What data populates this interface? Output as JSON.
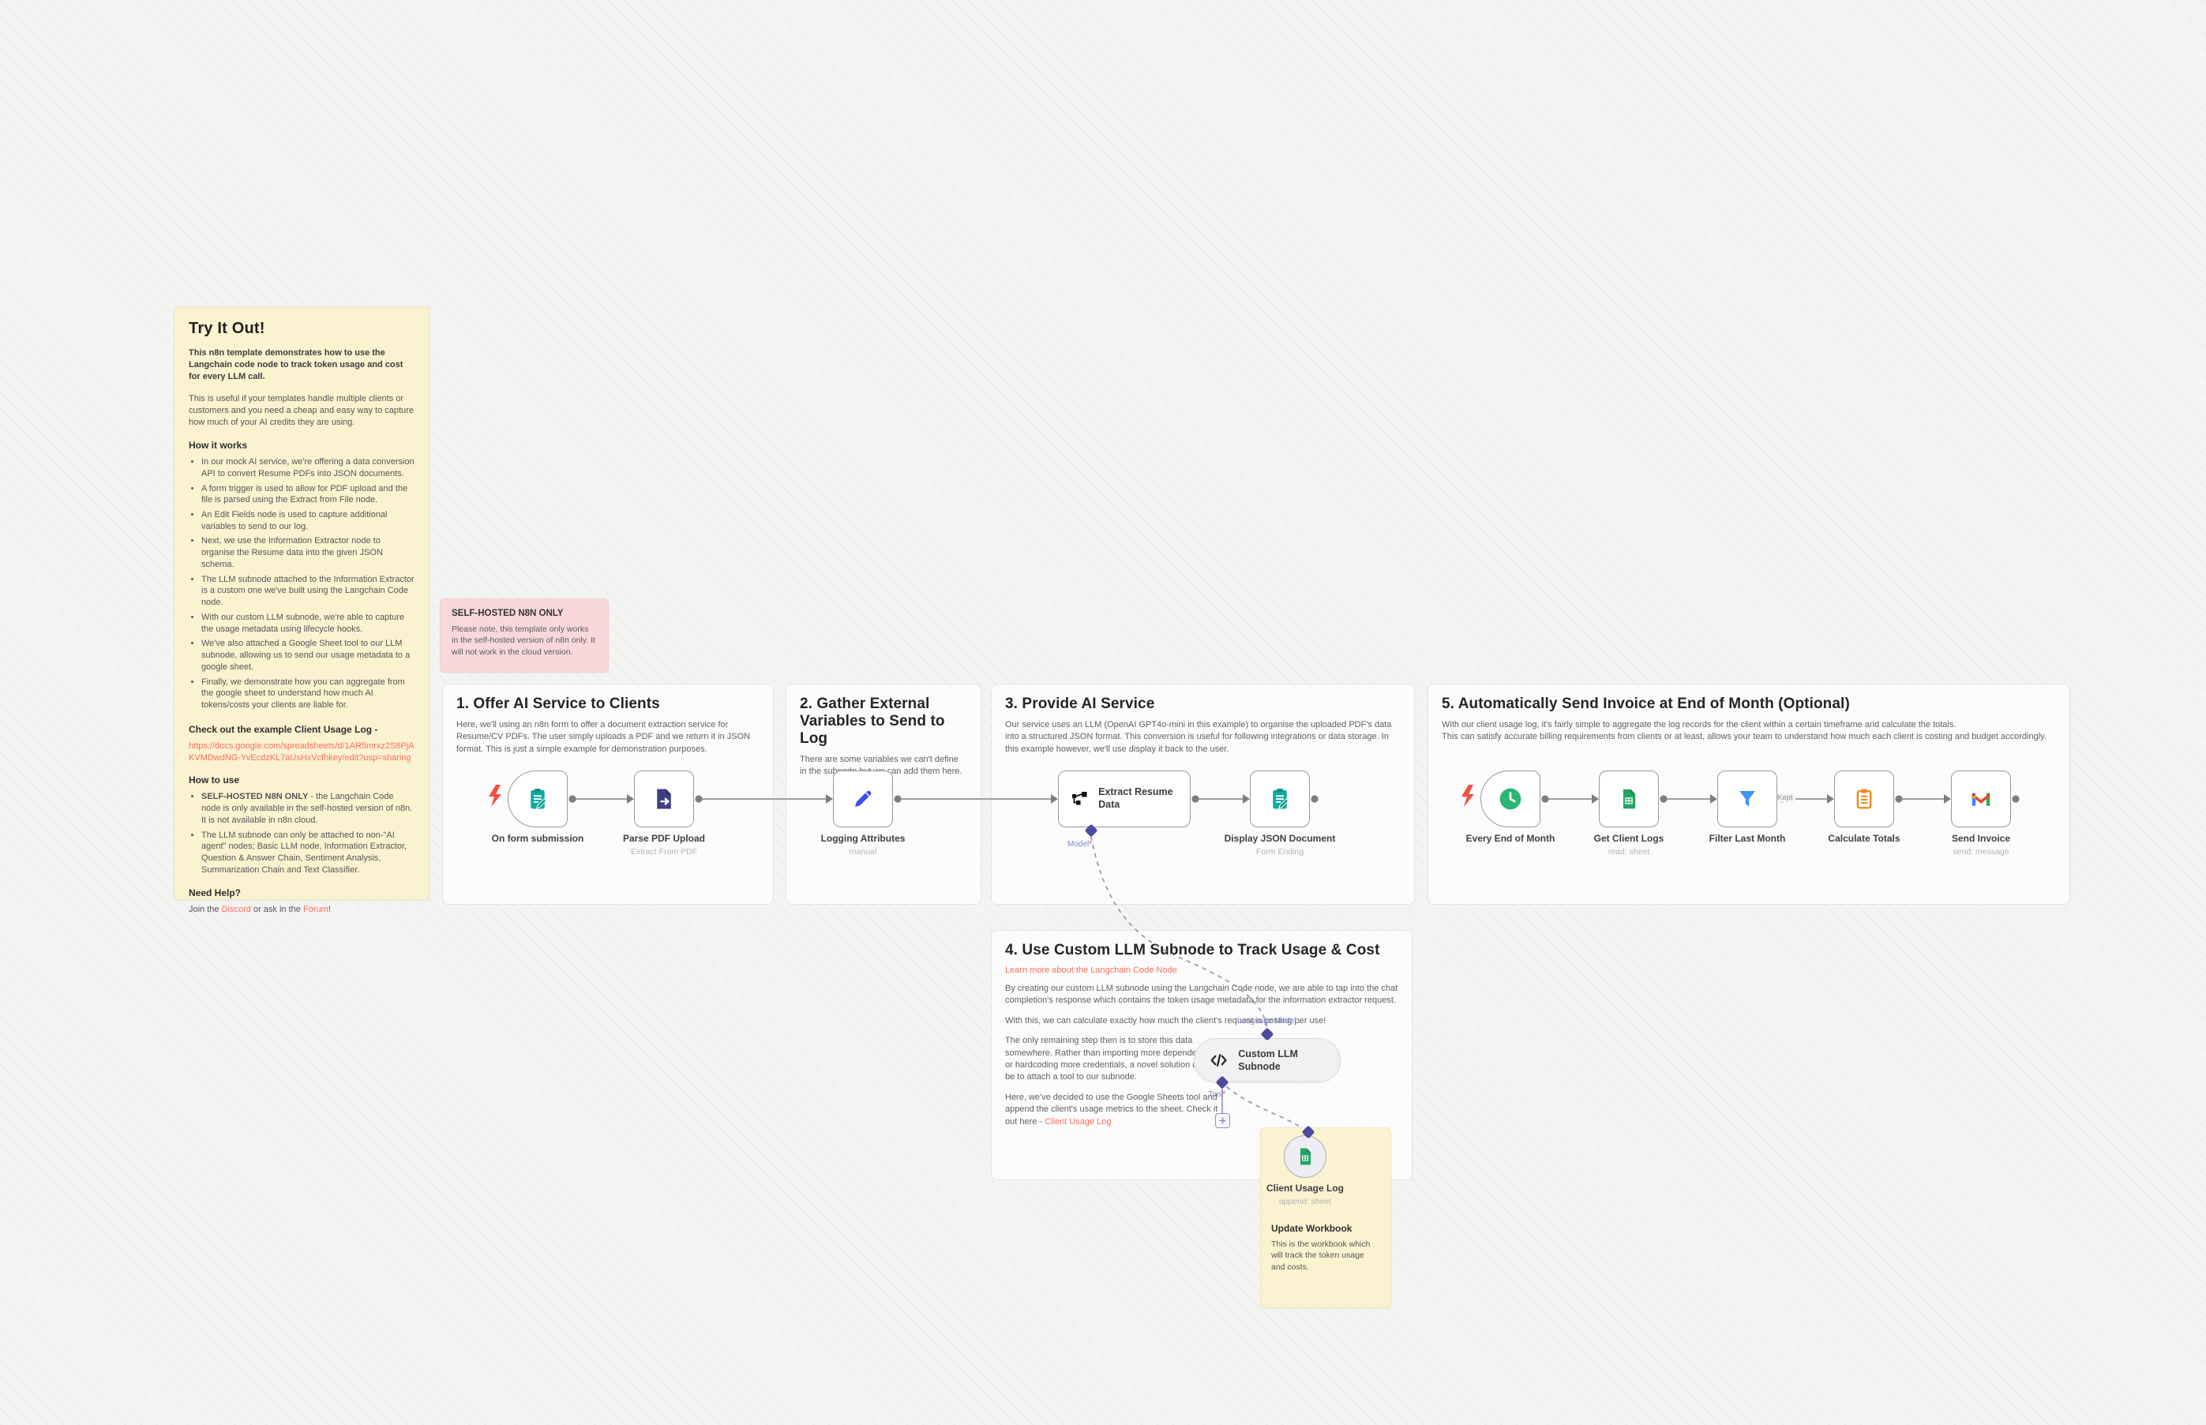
{
  "canvas": {
    "background": "#f4f4f3",
    "accent_red": "#ff6d5a",
    "note_yellow": "#fbf2d0",
    "note_pink": "#f8d8da"
  },
  "notes": {
    "try_it_out": {
      "title": "Try It Out!",
      "intro_bold": "This n8n template demonstrates how to use the Langchain code node to track token usage and cost for every LLM call.",
      "intro": "This is useful if your templates handle multiple clients or customers and you need a cheap and easy way to capture how much of your AI credits they are using.",
      "how_it_works_heading": "How it works",
      "how_it_works_items": [
        "In our mock AI service, we're offering a data conversion API to convert Resume PDFs into JSON documents.",
        "A form trigger is used to allow for PDF upload and the file is parsed using the Extract from File node.",
        "An Edit Fields node is used to capture additional variables to send to our log.",
        "Next, we use the Information Extractor node to organise the Resume data into the given JSON schema.",
        "The LLM subnode attached to the Information Extractor is a custom one we've built using the Langchain Code node.",
        "With our custom LLM subnode, we're able to capture the usage metadata using lifecycle hooks.",
        "We've also attached a Google Sheet tool to our LLM subnode, allowing us to send our usage metadata to a google sheet.",
        "Finally, we demonstrate how you can aggregate from the google sheet to understand how much AI tokens/costs your clients are liable for."
      ],
      "example_heading": "Check out the example Client Usage Log -",
      "example_link": "https://docs.google.com/spreadsheets/d/1AR5mrxz2S8PjAKVMDwdNG-YvEcdzKL7aUsHxVcfhkey/edit?usp=sharing",
      "how_to_use_heading": "How to use",
      "how_to_use_items": [
        {
          "bold": "SELF-HOSTED N8N ONLY",
          "text": " - the Langchain Code node is only available in the self-hosted version of n8n. It is not available in n8n cloud."
        },
        {
          "bold": "",
          "text": "The LLM subnode can only be attached to non-\"AI agent\" nodes; Basic LLM node, Information Extractor, Question & Answer Chain, Sentiment Analysis, Summarization Chain and Text Classifier."
        }
      ],
      "need_help_heading": "Need Help?",
      "need_help_prefix": "Join the ",
      "discord_link": "Discord",
      "need_help_middle": " or ask in the ",
      "forum_link": "Forum",
      "need_help_suffix": "!"
    },
    "self_hosted": {
      "title": "SELF-HOSTED N8N ONLY",
      "body": "Please note, this template only works in the self-hosted version of n8n only. It will not work in the cloud version."
    },
    "update_workbook": {
      "title": "Update Workbook",
      "body": "This is the workbook which will track the token usage and costs."
    }
  },
  "sections": [
    {
      "title": "1. Offer AI Service to Clients",
      "body": "Here, we'll using an n8n form to offer a document extraction service for Resume/CV PDFs. The user simply uploads a PDF and we return it in JSON format. This is just a simple example for demonstration purposes."
    },
    {
      "title": "2. Gather External Variables to Send to Log",
      "body": "There are some variables we can't define in the subnode but we can add them here."
    },
    {
      "title": "3. Provide AI Service",
      "body": "Our service uses an LLM (OpenAI GPT4o-mini in this example) to organise the uploaded PDF's data into a structured JSON format. This conversion is useful for following integrations or data storage. In this example however, we'll use display it back to the user."
    },
    {
      "title": "4. Use Custom LLM Subnode to Track Usage & Cost",
      "link": "Learn more about the Langchain Code Node",
      "body1": "By creating our custom LLM subnode using the Langchain Code node, we are able to tap into the chat completion's response which contains the token usage metadata for the information extractor request.",
      "body2": "With this, we can calculate exactly how much the client's request is costing per use!",
      "body3": "The only remaining step then is to store this data somewhere. Rather than importing more dependencies or hardcoding more credentials, a novel solution can be to attach a tool to our subnode.",
      "body4_prefix": "Here, we've decided to use the Google Sheets tool and append the client's usage metrics to the sheet. Check it out here - ",
      "body4_link": "Client Usage Log"
    },
    {
      "title": "5. Automatically Send Invoice at End of Month (Optional)",
      "body": "With our client usage log, it's fairly simple to aggregate the log records for the client within a certain timeframe and calculate the totals.\nThis can satisfy accurate billing requirements from clients or at least, allows your team to understand how much each client is costing and budget accordingly."
    }
  ],
  "nodes": [
    {
      "name": "On form submission",
      "subtitle": ""
    },
    {
      "name": "Parse PDF Upload",
      "subtitle": "Extract From PDF"
    },
    {
      "name": "Logging Attributes",
      "subtitle": "manual"
    },
    {
      "name": "Extract Resume Data",
      "subtitle": ""
    },
    {
      "name": "Display JSON Document",
      "subtitle": "Form Ending"
    },
    {
      "name": "Every End of Month",
      "subtitle": ""
    },
    {
      "name": "Get Client Logs",
      "subtitle": "read: sheet"
    },
    {
      "name": "Filter Last Month",
      "subtitle": ""
    },
    {
      "name": "Calculate Totals",
      "subtitle": ""
    },
    {
      "name": "Send Invoice",
      "subtitle": "send: message"
    },
    {
      "name": "Custom LLM Subnode",
      "subtitle": ""
    },
    {
      "name": "Client Usage Log",
      "subtitle": "append: sheet"
    }
  ],
  "connectors": {
    "model_label": "Model",
    "language_model_label": "Language Model",
    "tool_label": "Tool",
    "required_marker": "*",
    "filter_output_label": "Kept"
  }
}
